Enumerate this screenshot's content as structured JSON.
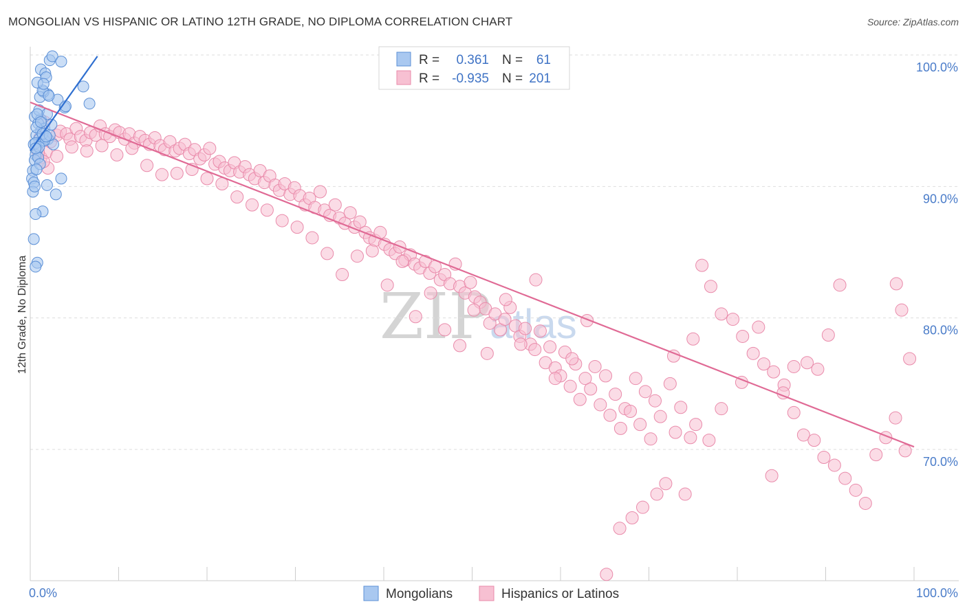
{
  "header": {
    "title": "MONGOLIAN VS HISPANIC OR LATINO 12TH GRADE, NO DIPLOMA CORRELATION CHART",
    "source": "Source: ZipAtlas.com"
  },
  "watermark": {
    "zip": "ZIP",
    "atlas": "atlas"
  },
  "legend": {
    "rows": [
      {
        "r_label": "R =",
        "r_value": "0.361",
        "n_label": "N =",
        "n_value": "61"
      },
      {
        "r_label": "R =",
        "r_value": "-0.935",
        "n_label": "N =",
        "n_value": "201"
      }
    ]
  },
  "colors": {
    "mongolian_fill": "#a9c8f0",
    "mongolian_stroke": "#5b8fd6",
    "mongolian_line": "#2f6fd0",
    "hispanic_fill": "#f7c0d2",
    "hispanic_stroke": "#e98aaa",
    "hispanic_line": "#e06a95",
    "value_text": "#3f73c5",
    "grid": "#dddddd"
  },
  "chart_data": {
    "type": "scatter",
    "title": "MONGOLIAN VS HISPANIC OR LATINO 12TH GRADE, NO DIPLOMA CORRELATION CHART",
    "xlabel": "",
    "ylabel": "12th Grade, No Diploma",
    "xlim": [
      0,
      100
    ],
    "ylim": [
      60,
      100
    ],
    "x_tick_labels": [
      "0.0%",
      "100.0%"
    ],
    "y_ticks": [
      {
        "value": 100,
        "label": "100.0%"
      },
      {
        "value": 90,
        "label": "90.0%"
      },
      {
        "value": 80,
        "label": "80.0%"
      },
      {
        "value": 70,
        "label": "70.0%"
      }
    ],
    "grid": true,
    "series": [
      {
        "name": "Mongolians",
        "r": 0.361,
        "n": 61,
        "trend": {
          "x": [
            0.0,
            7.6
          ],
          "y": [
            92.7,
            99.9
          ]
        },
        "points": [
          [
            2.2,
            99.6
          ],
          [
            2.5,
            99.9
          ],
          [
            3.5,
            99.5
          ],
          [
            1.2,
            98.9
          ],
          [
            1.7,
            98.6
          ],
          [
            1.8,
            98.3
          ],
          [
            6.0,
            97.6
          ],
          [
            2.0,
            97.0
          ],
          [
            1.5,
            97.2
          ],
          [
            1.1,
            96.8
          ],
          [
            1.4,
            97.3
          ],
          [
            0.8,
            97.9
          ],
          [
            3.1,
            96.6
          ],
          [
            3.9,
            96.0
          ],
          [
            6.7,
            96.3
          ],
          [
            0.5,
            95.3
          ],
          [
            1.2,
            95.1
          ],
          [
            0.9,
            94.8
          ],
          [
            1.6,
            94.4
          ],
          [
            1.2,
            94.2
          ],
          [
            0.7,
            93.9
          ],
          [
            1.0,
            93.6
          ],
          [
            1.3,
            93.4
          ],
          [
            2.0,
            93.6
          ],
          [
            2.6,
            93.2
          ],
          [
            1.6,
            93.5
          ],
          [
            0.4,
            93.2
          ],
          [
            0.8,
            92.8
          ],
          [
            0.6,
            92.4
          ],
          [
            0.5,
            92.0
          ],
          [
            0.3,
            91.2
          ],
          [
            0.2,
            90.6
          ],
          [
            0.4,
            90.3
          ],
          [
            3.5,
            90.6
          ],
          [
            1.9,
            90.1
          ],
          [
            2.9,
            89.4
          ],
          [
            0.3,
            89.6
          ],
          [
            1.4,
            88.1
          ],
          [
            0.6,
            87.9
          ],
          [
            0.4,
            86.0
          ],
          [
            0.8,
            84.2
          ],
          [
            0.6,
            83.9
          ],
          [
            4.0,
            96.1
          ],
          [
            1.0,
            95.8
          ],
          [
            1.9,
            95.5
          ],
          [
            0.7,
            94.5
          ],
          [
            1.4,
            94.0
          ],
          [
            2.2,
            93.9
          ],
          [
            0.6,
            93.3
          ],
          [
            0.9,
            92.2
          ],
          [
            1.1,
            91.7
          ],
          [
            0.7,
            91.3
          ],
          [
            1.5,
            97.8
          ],
          [
            2.1,
            96.9
          ],
          [
            0.5,
            90.0
          ],
          [
            1.0,
            93.0
          ],
          [
            0.8,
            95.5
          ],
          [
            2.4,
            94.7
          ],
          [
            1.8,
            93.8
          ],
          [
            0.6,
            92.9
          ],
          [
            1.2,
            94.9
          ]
        ]
      },
      {
        "name": "Hispanics or Latinos",
        "r": -0.935,
        "n": 201,
        "trend": {
          "x": [
            0.0,
            100.0
          ],
          "y": [
            96.4,
            70.2
          ]
        },
        "points": [
          [
            1.2,
            92.2
          ],
          [
            1.8,
            92.6
          ],
          [
            2.3,
            93.4
          ],
          [
            3.0,
            93.9
          ],
          [
            3.4,
            94.2
          ],
          [
            4.1,
            94.0
          ],
          [
            4.5,
            93.6
          ],
          [
            5.2,
            94.4
          ],
          [
            5.7,
            93.8
          ],
          [
            6.3,
            93.5
          ],
          [
            6.8,
            94.1
          ],
          [
            7.4,
            93.9
          ],
          [
            7.9,
            94.6
          ],
          [
            8.5,
            94.0
          ],
          [
            9.0,
            93.8
          ],
          [
            9.6,
            94.3
          ],
          [
            10.1,
            94.1
          ],
          [
            10.7,
            93.6
          ],
          [
            11.2,
            94.0
          ],
          [
            11.8,
            93.3
          ],
          [
            12.4,
            93.8
          ],
          [
            13.0,
            93.5
          ],
          [
            13.5,
            93.2
          ],
          [
            14.1,
            93.7
          ],
          [
            14.7,
            93.1
          ],
          [
            15.2,
            92.8
          ],
          [
            15.8,
            93.4
          ],
          [
            16.4,
            92.7
          ],
          [
            16.9,
            92.9
          ],
          [
            17.5,
            93.2
          ],
          [
            18.0,
            92.5
          ],
          [
            18.6,
            92.8
          ],
          [
            19.2,
            92.1
          ],
          [
            19.7,
            92.4
          ],
          [
            20.3,
            92.9
          ],
          [
            20.9,
            91.7
          ],
          [
            21.4,
            91.9
          ],
          [
            22.0,
            91.4
          ],
          [
            22.6,
            91.2
          ],
          [
            23.1,
            91.8
          ],
          [
            23.7,
            91.1
          ],
          [
            24.3,
            91.5
          ],
          [
            24.8,
            90.9
          ],
          [
            25.4,
            90.6
          ],
          [
            26.0,
            91.2
          ],
          [
            26.5,
            90.3
          ],
          [
            27.1,
            90.8
          ],
          [
            27.7,
            90.1
          ],
          [
            28.2,
            89.7
          ],
          [
            28.8,
            90.2
          ],
          [
            29.4,
            89.4
          ],
          [
            29.9,
            89.9
          ],
          [
            30.5,
            89.3
          ],
          [
            31.1,
            88.6
          ],
          [
            31.6,
            89.1
          ],
          [
            32.2,
            88.4
          ],
          [
            32.8,
            89.6
          ],
          [
            33.3,
            88.2
          ],
          [
            33.9,
            87.8
          ],
          [
            34.5,
            88.6
          ],
          [
            35.0,
            87.6
          ],
          [
            35.6,
            87.2
          ],
          [
            36.2,
            88.0
          ],
          [
            36.7,
            86.9
          ],
          [
            37.3,
            87.3
          ],
          [
            37.9,
            86.5
          ],
          [
            38.4,
            86.1
          ],
          [
            39.0,
            85.9
          ],
          [
            39.6,
            86.5
          ],
          [
            40.1,
            85.6
          ],
          [
            40.7,
            85.2
          ],
          [
            41.3,
            84.9
          ],
          [
            41.8,
            85.4
          ],
          [
            42.4,
            84.4
          ],
          [
            43.0,
            84.8
          ],
          [
            43.5,
            84.1
          ],
          [
            44.1,
            83.8
          ],
          [
            44.7,
            84.3
          ],
          [
            45.2,
            83.4
          ],
          [
            45.8,
            83.9
          ],
          [
            46.4,
            82.9
          ],
          [
            46.9,
            83.3
          ],
          [
            47.5,
            82.6
          ],
          [
            48.1,
            84.1
          ],
          [
            48.6,
            82.4
          ],
          [
            49.2,
            81.9
          ],
          [
            49.8,
            82.7
          ],
          [
            50.3,
            81.6
          ],
          [
            50.9,
            81.2
          ],
          [
            51.5,
            80.7
          ],
          [
            52.0,
            79.6
          ],
          [
            52.6,
            80.3
          ],
          [
            53.2,
            79.1
          ],
          [
            53.7,
            79.9
          ],
          [
            54.3,
            80.8
          ],
          [
            54.9,
            79.4
          ],
          [
            55.4,
            78.6
          ],
          [
            56.0,
            79.2
          ],
          [
            56.6,
            78.0
          ],
          [
            57.1,
            77.6
          ],
          [
            57.7,
            79.0
          ],
          [
            58.3,
            76.6
          ],
          [
            58.8,
            77.8
          ],
          [
            59.4,
            76.2
          ],
          [
            60.0,
            75.6
          ],
          [
            60.5,
            77.4
          ],
          [
            61.1,
            74.8
          ],
          [
            61.7,
            76.5
          ],
          [
            62.2,
            73.8
          ],
          [
            62.8,
            75.4
          ],
          [
            63.4,
            74.6
          ],
          [
            63.9,
            76.3
          ],
          [
            64.5,
            73.4
          ],
          [
            65.1,
            75.6
          ],
          [
            65.6,
            72.6
          ],
          [
            66.2,
            74.2
          ],
          [
            66.8,
            71.6
          ],
          [
            67.3,
            73.1
          ],
          [
            67.9,
            72.9
          ],
          [
            68.5,
            75.4
          ],
          [
            69.0,
            71.9
          ],
          [
            69.6,
            74.4
          ],
          [
            70.2,
            70.8
          ],
          [
            70.7,
            73.7
          ],
          [
            71.3,
            72.5
          ],
          [
            71.9,
            67.4
          ],
          [
            72.4,
            75.0
          ],
          [
            73.0,
            71.3
          ],
          [
            73.6,
            73.2
          ],
          [
            74.1,
            66.6
          ],
          [
            74.7,
            70.9
          ],
          [
            75.3,
            71.9
          ],
          [
            76.0,
            84.0
          ],
          [
            77.0,
            82.4
          ],
          [
            78.2,
            80.3
          ],
          [
            79.5,
            79.9
          ],
          [
            80.6,
            78.6
          ],
          [
            81.8,
            77.3
          ],
          [
            83.0,
            76.5
          ],
          [
            84.1,
            75.9
          ],
          [
            85.3,
            74.9
          ],
          [
            86.4,
            72.8
          ],
          [
            87.5,
            71.1
          ],
          [
            88.7,
            70.7
          ],
          [
            89.8,
            69.4
          ],
          [
            91.0,
            68.8
          ],
          [
            92.2,
            67.8
          ],
          [
            93.4,
            66.9
          ],
          [
            94.5,
            65.9
          ],
          [
            95.7,
            69.6
          ],
          [
            96.8,
            70.9
          ],
          [
            97.9,
            72.4
          ],
          [
            99.0,
            69.9
          ],
          [
            99.5,
            76.9
          ],
          [
            98.6,
            80.6
          ],
          [
            98.0,
            82.6
          ],
          [
            91.6,
            82.5
          ],
          [
            90.3,
            78.7
          ],
          [
            89.1,
            76.1
          ],
          [
            87.9,
            76.6
          ],
          [
            86.4,
            76.3
          ],
          [
            85.2,
            74.3
          ],
          [
            83.9,
            68.0
          ],
          [
            82.4,
            79.3
          ],
          [
            80.5,
            75.1
          ],
          [
            78.2,
            73.1
          ],
          [
            76.8,
            70.7
          ],
          [
            75.0,
            78.4
          ],
          [
            72.8,
            77.1
          ],
          [
            70.9,
            66.6
          ],
          [
            69.3,
            65.6
          ],
          [
            68.1,
            64.8
          ],
          [
            66.7,
            64.0
          ],
          [
            65.2,
            60.5
          ],
          [
            63.0,
            79.8
          ],
          [
            61.3,
            76.9
          ],
          [
            59.4,
            75.4
          ],
          [
            57.2,
            82.9
          ],
          [
            55.5,
            78.0
          ],
          [
            53.8,
            81.4
          ],
          [
            51.7,
            77.3
          ],
          [
            50.2,
            80.6
          ],
          [
            48.6,
            77.9
          ],
          [
            46.9,
            79.1
          ],
          [
            45.3,
            81.9
          ],
          [
            43.6,
            80.1
          ],
          [
            42.1,
            84.3
          ],
          [
            40.4,
            82.5
          ],
          [
            38.7,
            85.1
          ],
          [
            37.0,
            84.7
          ],
          [
            35.3,
            83.3
          ],
          [
            33.6,
            84.9
          ],
          [
            31.9,
            86.1
          ],
          [
            30.2,
            86.9
          ],
          [
            28.5,
            87.4
          ],
          [
            26.8,
            88.2
          ],
          [
            25.1,
            88.6
          ],
          [
            23.4,
            89.2
          ],
          [
            21.7,
            90.2
          ],
          [
            20.0,
            90.6
          ],
          [
            18.3,
            91.3
          ],
          [
            16.6,
            91.0
          ],
          [
            14.9,
            90.9
          ],
          [
            13.2,
            91.6
          ],
          [
            11.5,
            92.9
          ],
          [
            9.8,
            92.4
          ],
          [
            8.1,
            93.1
          ],
          [
            6.4,
            92.7
          ],
          [
            4.7,
            93.0
          ],
          [
            3.0,
            92.3
          ],
          [
            2.0,
            91.4
          ],
          [
            1.5,
            91.9
          ],
          [
            0.9,
            92.6
          ],
          [
            1.1,
            93.7
          ],
          [
            1.6,
            94.9
          ]
        ]
      }
    ]
  },
  "bottom_legend": {
    "items": [
      {
        "label": "Mongolians"
      },
      {
        "label": "Hispanics or Latinos"
      }
    ]
  }
}
